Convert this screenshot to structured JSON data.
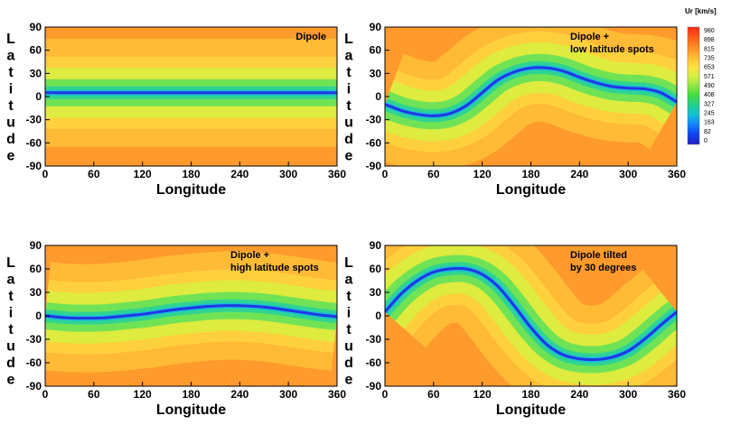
{
  "chart_data": [
    {
      "type": "heatmap",
      "title_lines": [
        "Dipole"
      ],
      "xlabel": "Longitude",
      "ylabel": "Latitude",
      "xlim": [
        0,
        360
      ],
      "ylim": [
        -90,
        90
      ],
      "xticks": [
        0,
        60,
        120,
        180,
        240,
        300,
        360
      ],
      "yticks": [
        90,
        60,
        30,
        0,
        -30,
        -60,
        -90
      ],
      "neutral_line": {
        "x": [
          0,
          60,
          120,
          180,
          240,
          300,
          360
        ],
        "y": [
          5,
          5,
          5,
          5,
          5,
          5,
          5
        ]
      }
    },
    {
      "type": "heatmap",
      "title_lines": [
        "Dipole +",
        "low latitude spots"
      ],
      "xlabel": "Longitude",
      "ylabel": "Latitude",
      "xlim": [
        0,
        360
      ],
      "ylim": [
        -90,
        90
      ],
      "xticks": [
        0,
        60,
        120,
        180,
        240,
        300,
        360
      ],
      "yticks": [
        90,
        60,
        30,
        0,
        -30,
        -60,
        -90
      ],
      "neutral_line": {
        "x": [
          0,
          20,
          40,
          60,
          80,
          100,
          120,
          140,
          160,
          180,
          200,
          220,
          240,
          260,
          280,
          300,
          320,
          340,
          360
        ],
        "y": [
          -10,
          -18,
          -23,
          -25,
          -22,
          -12,
          5,
          22,
          32,
          37,
          37,
          33,
          25,
          18,
          13,
          11,
          10,
          5,
          -7
        ]
      }
    },
    {
      "type": "heatmap",
      "title_lines": [
        "Dipole +",
        "high latitude spots"
      ],
      "xlabel": "Longitude",
      "ylabel": "Latitude",
      "xlim": [
        0,
        360
      ],
      "ylim": [
        -90,
        90
      ],
      "xticks": [
        0,
        60,
        120,
        180,
        240,
        300,
        360
      ],
      "yticks": [
        90,
        60,
        30,
        0,
        -30,
        -60,
        -90
      ],
      "neutral_line": {
        "x": [
          0,
          20,
          40,
          60,
          80,
          100,
          120,
          140,
          160,
          180,
          200,
          220,
          240,
          260,
          280,
          300,
          320,
          340,
          360
        ],
        "y": [
          0,
          -2,
          -3,
          -3,
          -2,
          0,
          2,
          5,
          8,
          10,
          12,
          13,
          13,
          12,
          10,
          7,
          4,
          1,
          -1
        ]
      }
    },
    {
      "type": "heatmap",
      "title_lines": [
        "Dipole tilted",
        "by 30 degrees"
      ],
      "xlabel": "Longitude",
      "ylabel": "Latitude",
      "xlim": [
        0,
        360
      ],
      "ylim": [
        -90,
        90
      ],
      "xticks": [
        0,
        60,
        120,
        180,
        240,
        300,
        360
      ],
      "yticks": [
        90,
        60,
        30,
        0,
        -30,
        -60,
        -90
      ],
      "neutral_line": {
        "x": [
          0,
          20,
          40,
          60,
          80,
          100,
          120,
          140,
          160,
          180,
          200,
          220,
          240,
          260,
          280,
          300,
          320,
          340,
          360
        ],
        "y": [
          5,
          28,
          45,
          56,
          60,
          60,
          53,
          37,
          12,
          -15,
          -37,
          -50,
          -55,
          -56,
          -53,
          -45,
          -30,
          -12,
          5
        ]
      }
    }
  ],
  "colorbar": {
    "title": "Ur [km/s]",
    "ticks": [
      "980",
      "898",
      "815",
      "735",
      "653",
      "571",
      "490",
      "408",
      "327",
      "245",
      "163",
      "82",
      "0"
    ],
    "colors": [
      "#ff2a18",
      "#ff5a18",
      "#ff8a20",
      "#ffb830",
      "#ffe040",
      "#d8f040",
      "#90e840",
      "#40dc40",
      "#20d090",
      "#10c0d8",
      "#1080ff",
      "#1040f0",
      "#2020c0"
    ]
  },
  "panel_colors": {
    "background": "#ff9a2c",
    "mid": "#ffd640",
    "near": "#d8f040",
    "band": "#40e060",
    "line": "#2038e0"
  }
}
